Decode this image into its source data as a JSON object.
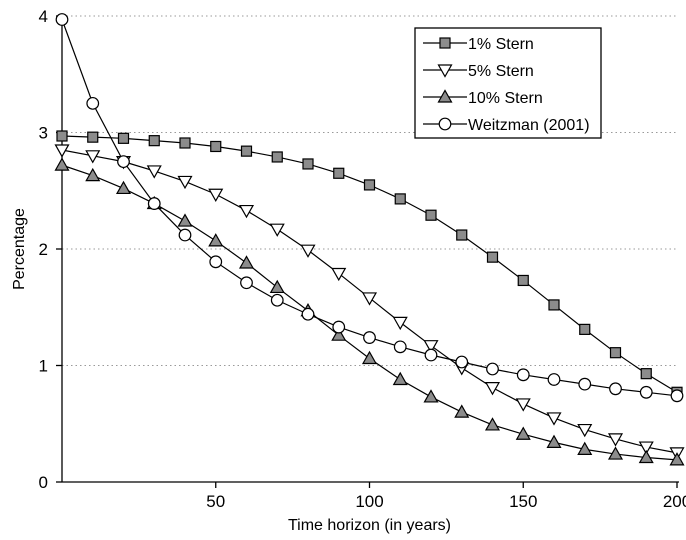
{
  "chart_data": {
    "type": "line",
    "xlabel": "Time horizon (in years)",
    "ylabel": "Percentage",
    "xlim": [
      0,
      200
    ],
    "ylim": [
      0,
      4
    ],
    "xticks": [
      50,
      100,
      150,
      200
    ],
    "xtick_labels": [
      "50",
      "100",
      "150",
      "200"
    ],
    "yticks": [
      0,
      1,
      2,
      3,
      4
    ],
    "ytick_labels": [
      "0",
      "1",
      "2",
      "3",
      "4"
    ],
    "grid": "horizontal dotted",
    "legend_position": "top-right",
    "x": [
      0,
      10,
      20,
      30,
      40,
      50,
      60,
      70,
      80,
      90,
      100,
      110,
      120,
      130,
      140,
      150,
      160,
      170,
      180,
      190,
      200
    ],
    "series": [
      {
        "name": "1% Stern",
        "marker": "square",
        "values": [
          2.97,
          2.96,
          2.95,
          2.93,
          2.91,
          2.88,
          2.84,
          2.79,
          2.73,
          2.65,
          2.55,
          2.43,
          2.29,
          2.12,
          1.93,
          1.73,
          1.52,
          1.31,
          1.11,
          0.93,
          0.77
        ]
      },
      {
        "name": "5% Stern",
        "marker": "triangle-down",
        "values": [
          2.85,
          2.8,
          2.75,
          2.67,
          2.58,
          2.47,
          2.33,
          2.17,
          1.99,
          1.79,
          1.58,
          1.37,
          1.17,
          0.98,
          0.81,
          0.67,
          0.55,
          0.45,
          0.37,
          0.3,
          0.25
        ]
      },
      {
        "name": "10% Stern",
        "marker": "triangle-up",
        "values": [
          2.72,
          2.63,
          2.52,
          2.39,
          2.24,
          2.07,
          1.88,
          1.67,
          1.47,
          1.26,
          1.06,
          0.88,
          0.73,
          0.6,
          0.49,
          0.41,
          0.34,
          0.28,
          0.24,
          0.21,
          0.19
        ]
      },
      {
        "name": "Weitzman (2001)",
        "marker": "circle",
        "values": [
          3.97,
          3.25,
          2.75,
          2.39,
          2.12,
          1.89,
          1.71,
          1.56,
          1.44,
          1.33,
          1.24,
          1.16,
          1.09,
          1.03,
          0.97,
          0.92,
          0.88,
          0.84,
          0.8,
          0.77,
          0.74
        ]
      }
    ]
  }
}
